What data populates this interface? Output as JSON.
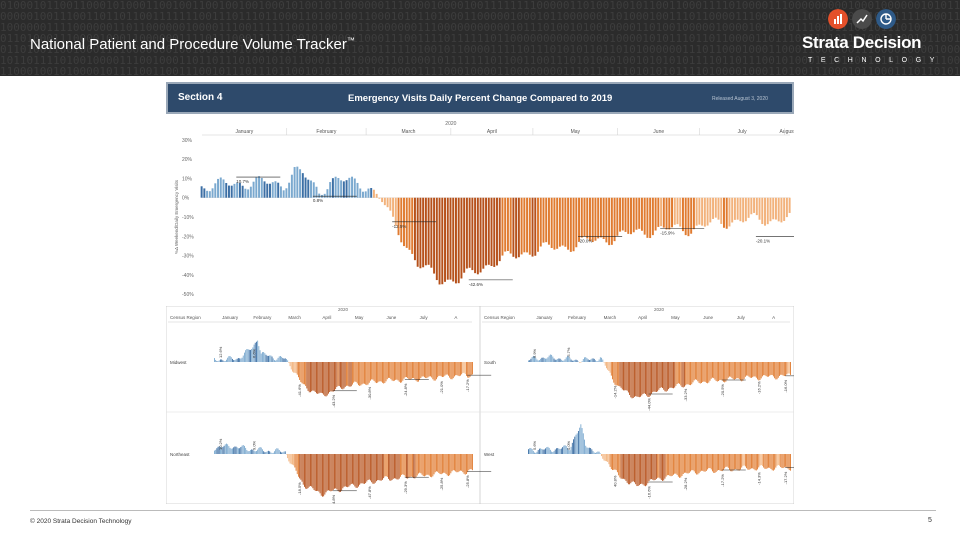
{
  "header": {
    "title": "National Patient and Procedure Volume Tracker",
    "title_mark": "™",
    "brand": "Strata Decision",
    "brand_sub": "TECHNOLOGY",
    "icons": [
      "bar-chart-icon",
      "trend-line-icon",
      "pie-chart-icon"
    ],
    "icon_colors": [
      "#e4502a",
      "#4a4a4a",
      "#2e5a88"
    ]
  },
  "section": {
    "label": "Section 4",
    "title": "Emergency Visits Daily Percent Change  Compared to 2019",
    "released": "Released August 3, 2020"
  },
  "footer": {
    "copyright": "© 2020 Strata Decision Technology",
    "page": "5"
  },
  "colors": {
    "pre_blue": "#7ba9cf",
    "pre_blue_dark": "#3c6fa5",
    "post_orange": "#e07b30",
    "post_orange_dark": "#b6511b",
    "post_orange_light": "#f2b27c"
  },
  "chart_data": [
    {
      "type": "bar",
      "title": "Emergency Visits Daily Percent Change  Compared to 2019",
      "year_label": "2020",
      "ylabel": "%Δ Weekend/Daily Emergency Visits",
      "ylim": [
        -52,
        32
      ],
      "y_ticks": [
        "30%",
        "20%",
        "10%",
        "0%",
        "-10%",
        "-20%",
        "-30%",
        "-40%",
        "-50%"
      ],
      "y_tick_values": [
        30,
        20,
        10,
        0,
        -10,
        -20,
        -30,
        -40,
        -50
      ],
      "months": [
        "January",
        "February",
        "March",
        "April",
        "May",
        "June",
        "July",
        "August"
      ],
      "month_starts": [
        1,
        32,
        61,
        92,
        122,
        153,
        183,
        214
      ],
      "x_range": [
        1,
        216
      ],
      "series_profile": [
        [
          1,
          6
        ],
        [
          20,
          8
        ],
        [
          31,
          7
        ],
        [
          35,
          14
        ],
        [
          38,
          12
        ],
        [
          44,
          3
        ],
        [
          48,
          9
        ],
        [
          58,
          8
        ],
        [
          62,
          6
        ],
        [
          67,
          -2
        ],
        [
          70,
          -10
        ],
        [
          75,
          -22
        ],
        [
          80,
          -35
        ],
        [
          88,
          -42
        ],
        [
          95,
          -43
        ],
        [
          105,
          -35
        ],
        [
          120,
          -28
        ],
        [
          135,
          -25
        ],
        [
          150,
          -21
        ],
        [
          165,
          -17
        ],
        [
          180,
          -16
        ],
        [
          195,
          -12
        ],
        [
          216,
          -11
        ]
      ],
      "annotations": [
        {
          "x": 15,
          "y": 10.7,
          "label": "10.7%"
        },
        {
          "x": 43,
          "y": 0.8,
          "label": "0.8%"
        },
        {
          "x": 72,
          "y": -12.5,
          "label": "-12.5%"
        },
        {
          "x": 100,
          "y": -42.6,
          "label": "-42.6%"
        },
        {
          "x": 140,
          "y": -20.0,
          "label": "-20.0%"
        },
        {
          "x": 170,
          "y": -15.9,
          "label": "-15.9%"
        },
        {
          "x": 205,
          "y": -20.1,
          "label": "-20.1%"
        }
      ]
    },
    {
      "type": "bar",
      "title": "Census Region",
      "year_label": "2020",
      "months": [
        "January",
        "February",
        "March",
        "April",
        "May",
        "June",
        "July",
        "A"
      ],
      "ylim": [
        -60,
        50
      ],
      "regions": [
        {
          "name": "Midwest",
          "profile": [
            [
              1,
              3
            ],
            [
              20,
              4
            ],
            [
              33,
              18
            ],
            [
              37,
              30
            ],
            [
              40,
              10
            ],
            [
              50,
              6
            ],
            [
              60,
              4
            ],
            [
              66,
              -8
            ],
            [
              75,
              -30
            ],
            [
              90,
              -42
            ],
            [
              110,
              -30
            ],
            [
              140,
              -24
            ],
            [
              180,
              -20
            ],
            [
              216,
              -16
            ]
          ],
          "labels": [
            "12.6%",
            "6.6%",
            "-41.6%",
            "-43.2%",
            "-30.8%",
            "-24.8%",
            "-21.0%",
            "-17.2%"
          ]
        },
        {
          "name": "South",
          "profile": [
            [
              1,
              3
            ],
            [
              15,
              6
            ],
            [
              30,
              4
            ],
            [
              45,
              2
            ],
            [
              60,
              5
            ],
            [
              66,
              -10
            ],
            [
              75,
              -32
            ],
            [
              90,
              -45
            ],
            [
              110,
              -35
            ],
            [
              140,
              -25
            ],
            [
              180,
              -20
            ],
            [
              216,
              -17
            ]
          ],
          "labels": [
            "5.9%",
            "-5.7%",
            "-14.2%",
            "-44.0%",
            "-33.2%",
            "-20.5%",
            "-16.2%",
            "-16.0%"
          ]
        },
        {
          "name": "Northeast",
          "profile": [
            [
              1,
              8
            ],
            [
              15,
              10
            ],
            [
              30,
              6
            ],
            [
              45,
              4
            ],
            [
              60,
              3
            ],
            [
              66,
              -15
            ],
            [
              75,
              -38
            ],
            [
              90,
              -50
            ],
            [
              110,
              -42
            ],
            [
              140,
              -32
            ],
            [
              180,
              -26
            ],
            [
              216,
              -21
            ]
          ],
          "labels": [
            "10.2%",
            "9.0%",
            "-18.5%",
            "-54.8%",
            "-47.8%",
            "-29.3%",
            "-25.8%",
            "-25.8%"
          ]
        },
        {
          "name": "West",
          "profile": [
            [
              1,
              5
            ],
            [
              20,
              6
            ],
            [
              35,
              8
            ],
            [
              40,
              25
            ],
            [
              44,
              34
            ],
            [
              48,
              12
            ],
            [
              55,
              4
            ],
            [
              66,
              -10
            ],
            [
              75,
              -28
            ],
            [
              90,
              -40
            ],
            [
              110,
              -30
            ],
            [
              140,
              -22
            ],
            [
              180,
              -18
            ],
            [
              216,
              -17
            ]
          ],
          "labels": [
            "5.6%",
            "0.0%",
            "40.8%",
            "-16.6%",
            "-28.2%",
            "-17.2%",
            "-14.3%",
            "-17.2%"
          ]
        }
      ]
    }
  ]
}
